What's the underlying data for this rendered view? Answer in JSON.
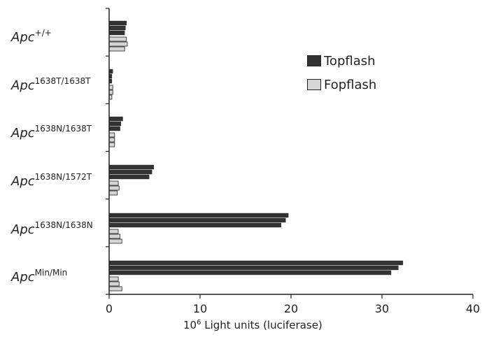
{
  "chart_data": {
    "type": "bar",
    "orientation": "horizontal",
    "categories": [
      {
        "base": "Apc",
        "sup": "+/+"
      },
      {
        "base": "Apc",
        "sup": "1638T/1638T"
      },
      {
        "base": "Apc",
        "sup": "1638N/1638T"
      },
      {
        "base": "Apc",
        "sup": "1638N/1572T"
      },
      {
        "base": "Apc",
        "sup": "1638N/1638N"
      },
      {
        "base": "Apc",
        "sup": "Min/Min"
      }
    ],
    "series": [
      {
        "name": "Topflash",
        "color": "#333333",
        "values": [
          [
            1.9,
            1.8,
            1.7
          ],
          [
            0.4,
            0.3,
            0.3
          ],
          [
            1.5,
            1.3,
            1.2
          ],
          [
            4.9,
            4.7,
            4.4
          ],
          [
            19.7,
            19.4,
            18.9
          ],
          [
            32.3,
            31.8,
            31.0
          ]
        ]
      },
      {
        "name": "Fopflash",
        "color": "#d6d6d6",
        "values": [
          [
            1.9,
            2.0,
            1.7
          ],
          [
            0.4,
            0.4,
            0.3
          ],
          [
            0.6,
            0.6,
            0.6
          ],
          [
            1.0,
            1.1,
            0.9
          ],
          [
            1.0,
            1.2,
            1.4
          ],
          [
            1.0,
            1.1,
            1.4
          ]
        ]
      }
    ],
    "xlim": [
      0,
      40
    ],
    "xticks": [
      0,
      10,
      20,
      30,
      40
    ],
    "xlabel": {
      "base": "10",
      "sup": "6",
      "rest": " Light units (luciferase)"
    },
    "legend_position": "top-right",
    "grid": false
  }
}
